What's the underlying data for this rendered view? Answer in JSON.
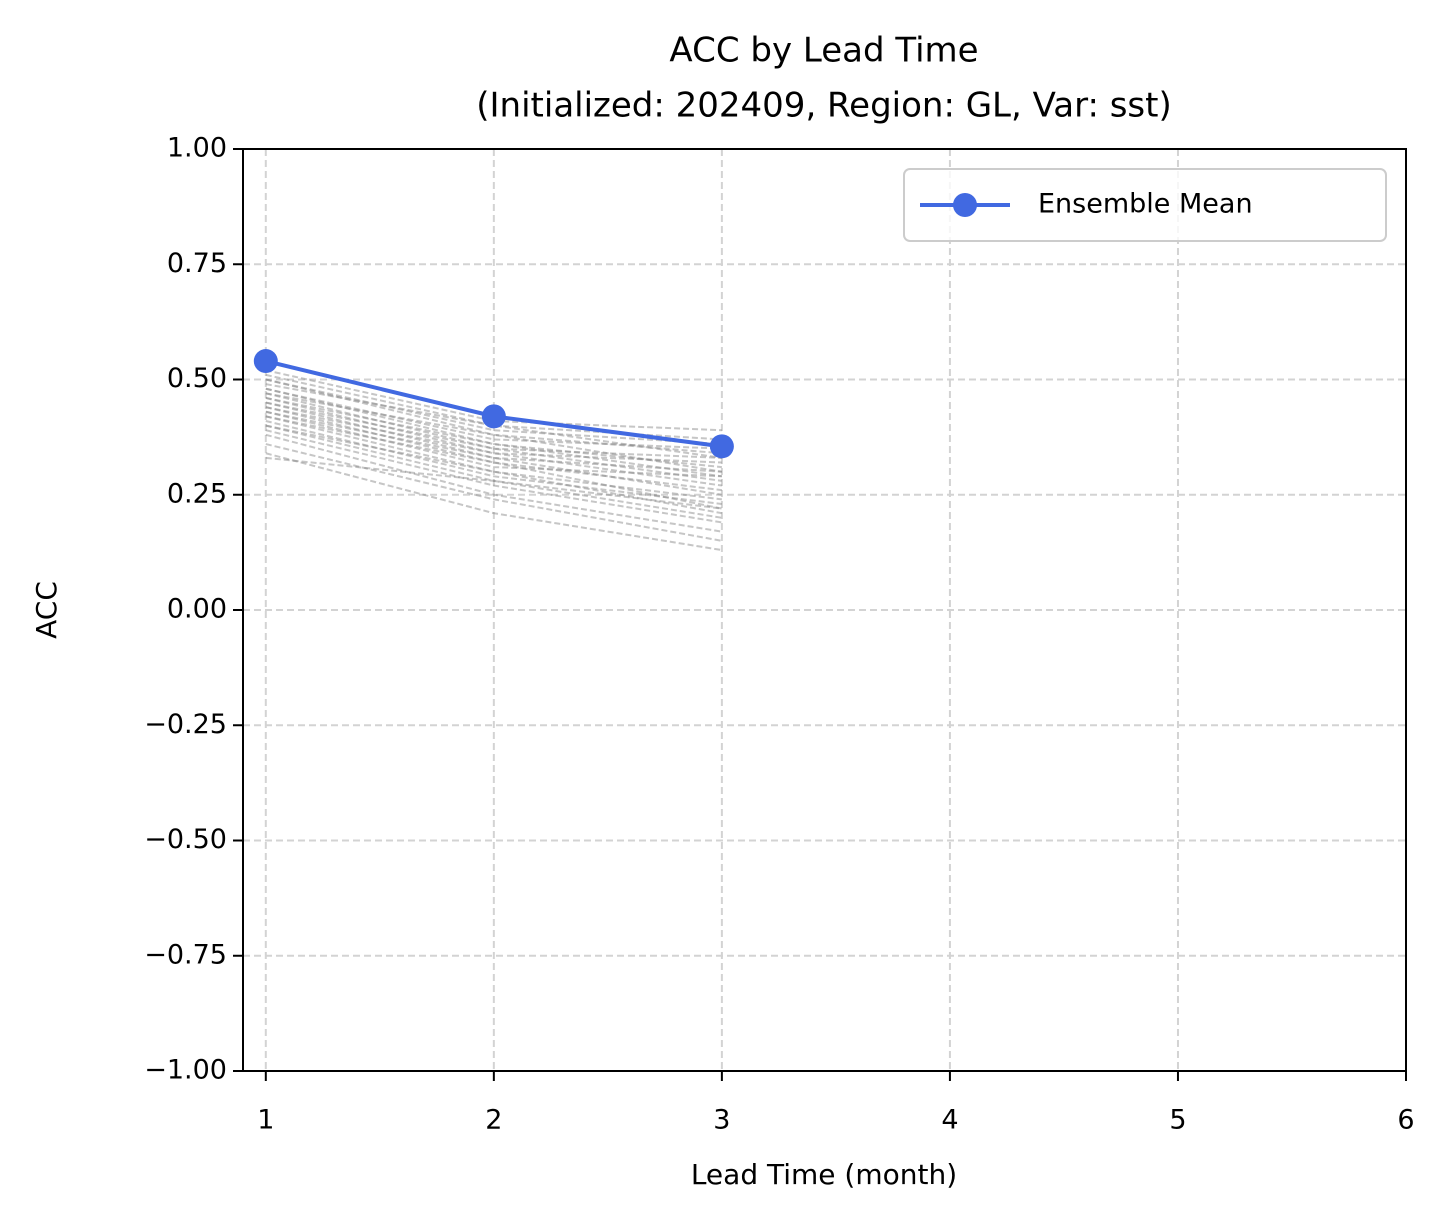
{
  "chart_data": {
    "type": "line",
    "title": "ACC by Lead Time",
    "subtitle": "(Initialized: 202409, Region: GL, Var: sst)",
    "x_label": "Lead Time (month)",
    "y_label": "ACC",
    "x": [
      1,
      2,
      3
    ],
    "series": [
      {
        "name": "Ensemble Mean",
        "color": "#4169e1",
        "values": [
          0.54,
          0.42,
          0.355
        ]
      }
    ],
    "members": {
      "color": "#808080",
      "values": [
        [
          0.52,
          0.41,
          0.39
        ],
        [
          0.51,
          0.4,
          0.37
        ],
        [
          0.5,
          0.39,
          0.36
        ],
        [
          0.5,
          0.38,
          0.34
        ],
        [
          0.49,
          0.4,
          0.33
        ],
        [
          0.48,
          0.37,
          0.35
        ],
        [
          0.48,
          0.36,
          0.31
        ],
        [
          0.47,
          0.38,
          0.3
        ],
        [
          0.47,
          0.35,
          0.33
        ],
        [
          0.46,
          0.36,
          0.29
        ],
        [
          0.46,
          0.34,
          0.32
        ],
        [
          0.45,
          0.35,
          0.28
        ],
        [
          0.45,
          0.33,
          0.3
        ],
        [
          0.44,
          0.34,
          0.27
        ],
        [
          0.44,
          0.32,
          0.26
        ],
        [
          0.43,
          0.33,
          0.25
        ],
        [
          0.43,
          0.31,
          0.29
        ],
        [
          0.42,
          0.3,
          0.24
        ],
        [
          0.42,
          0.32,
          0.22
        ],
        [
          0.41,
          0.29,
          0.23
        ],
        [
          0.4,
          0.28,
          0.2
        ],
        [
          0.4,
          0.3,
          0.21
        ],
        [
          0.39,
          0.27,
          0.19
        ],
        [
          0.38,
          0.25,
          0.17
        ],
        [
          0.36,
          0.24,
          0.15
        ],
        [
          0.34,
          0.21,
          0.13
        ],
        [
          0.33,
          0.28,
          0.22
        ]
      ]
    },
    "xlim": [
      0.9,
      6
    ],
    "ylim": [
      -1,
      1
    ],
    "xticks": [
      1,
      2,
      3,
      4,
      5,
      6
    ],
    "yticks": [
      {
        "value": -1,
        "label": "−1.00"
      },
      {
        "value": -0.75,
        "label": "−0.75"
      },
      {
        "value": -0.5,
        "label": "−0.50"
      },
      {
        "value": -0.25,
        "label": "−0.25"
      },
      {
        "value": 0,
        "label": "0.00"
      },
      0.25,
      {
        "value": 0.5,
        "label": "0.50"
      },
      0.75,
      {
        "value": 1,
        "label": "1.00"
      }
    ],
    "grid": true,
    "legend": "upper right"
  }
}
